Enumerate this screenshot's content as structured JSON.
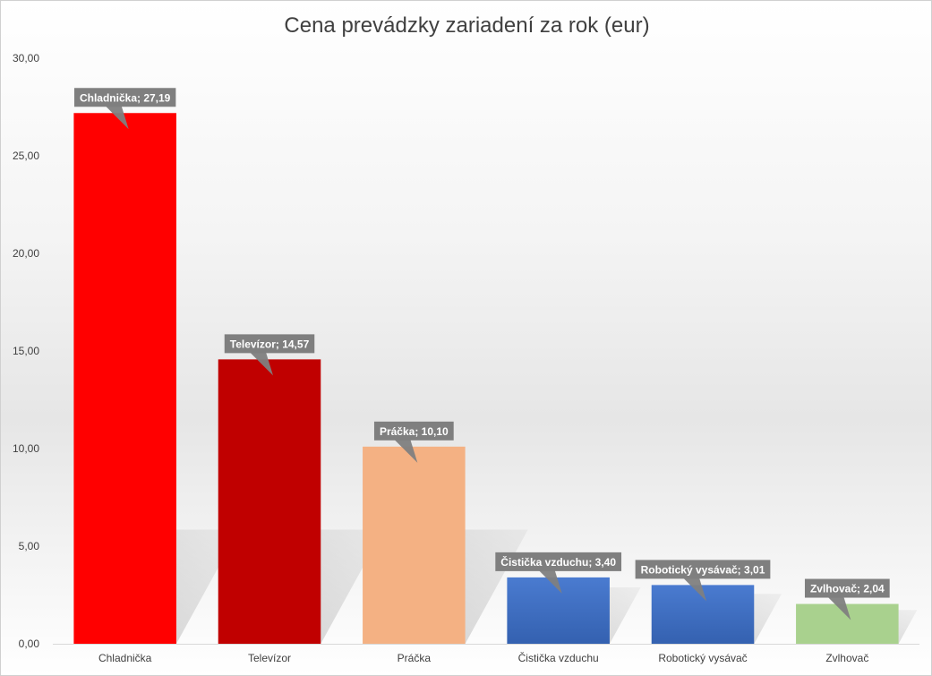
{
  "chart_data": {
    "type": "bar",
    "title": "Cena prevádzky zariadení za rok (eur)",
    "xlabel": "",
    "ylabel": "",
    "ylim": [
      0,
      30
    ],
    "yticks": [
      "0,00",
      "5,00",
      "10,00",
      "15,00",
      "20,00",
      "25,00",
      "30,00"
    ],
    "grid": false,
    "legend": "none",
    "categories": [
      "Chladnička",
      "Televízor",
      "Práčka",
      "Čistička vzduchu",
      "Robotický vysávač",
      "Zvlhovač"
    ],
    "values": [
      27.19,
      14.57,
      10.1,
      3.4,
      3.01,
      2.04
    ],
    "data_labels": [
      "Chladnička; 27,19",
      "Televízor; 14,57",
      "Práčka; 10,10",
      "Čistička vzduchu; 3,40",
      "Robotický vysávač; 3,01",
      "Zvlhovač; 2,04"
    ],
    "colors": [
      "#ff0000",
      "#c00000",
      "#f4b183",
      "#4472c4",
      "#4472c4",
      "#a9d18e"
    ],
    "label_color": "#7f7f7f"
  }
}
